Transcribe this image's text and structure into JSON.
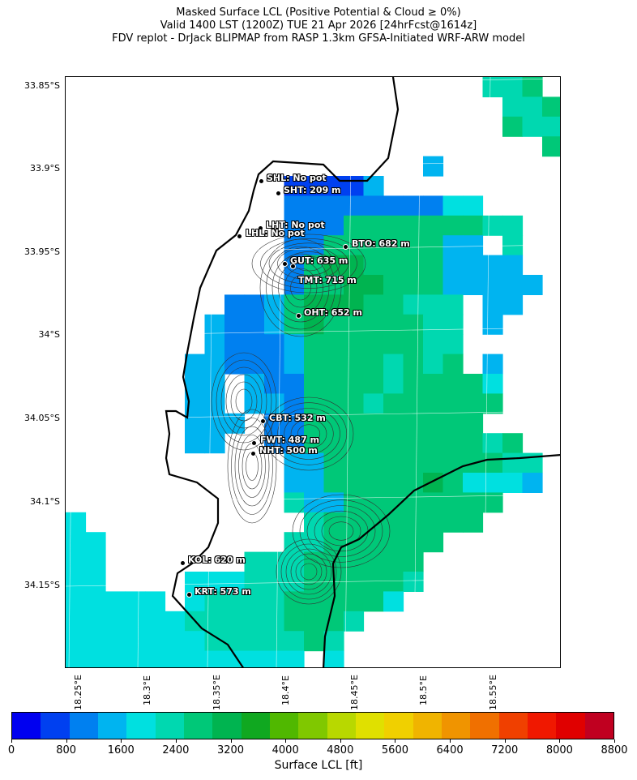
{
  "title": {
    "line1": "Masked Surface LCL (Positive Potential & Cloud ≥ 0%)",
    "line2": "Valid 1400 LST (1200Z) TUE 21 Apr 2026 [24hrFcst@1614z]",
    "line3": "FDV replot - DrJack BLIPMAP from RASP 1.3km GFSA-Initiated WRF-ARW model"
  },
  "map": {
    "lat_labels": [
      "33.85°S",
      "33.9°S",
      "33.95°S",
      "34°S",
      "34.05°S",
      "34.1°S",
      "34.15°S"
    ],
    "lon_labels": [
      "18.25°E",
      "18.3°E",
      "18.35°E",
      "18.4°E",
      "18.45°E",
      "18.5°E",
      "18.55°E"
    ],
    "stations": [
      {
        "id": "SHL",
        "label": "SHL: No pot"
      },
      {
        "id": "SHT",
        "label": "SHT: 209 m"
      },
      {
        "id": "LHT",
        "label": "LHT: No pot"
      },
      {
        "id": "LHL",
        "label": "LHL: No pot"
      },
      {
        "id": "BTO",
        "label": "BTO: 682 m"
      },
      {
        "id": "GUT",
        "label": "GUT: 635 m"
      },
      {
        "id": "TMT",
        "label": "TMT: 715 m"
      },
      {
        "id": "OHT",
        "label": "OHT: 652 m"
      },
      {
        "id": "CBT",
        "label": "CBT: 532 m"
      },
      {
        "id": "FWT",
        "label": "FWT: 487 m"
      },
      {
        "id": "NHT",
        "label": "NHT: 500 m"
      },
      {
        "id": "KOL",
        "label": "KOL: 620 m"
      },
      {
        "id": "KRT",
        "label": "KRT: 573 m"
      }
    ]
  },
  "colorbar": {
    "label": "Surface LCL [ft]",
    "tick_labels": [
      "0",
      "800",
      "1600",
      "2400",
      "3200",
      "4000",
      "4800",
      "5600",
      "6400",
      "7200",
      "8000",
      "8800"
    ],
    "colors": [
      "#0000f0",
      "#0040f0",
      "#0080f0",
      "#00b4f0",
      "#00e0e0",
      "#00d8b0",
      "#00c878",
      "#00b450",
      "#10a820",
      "#50b800",
      "#80c800",
      "#b8d800",
      "#e0e000",
      "#f0d000",
      "#f0b400",
      "#f09400",
      "#f07000",
      "#f04000",
      "#f01800",
      "#e00000",
      "#c00020"
    ]
  },
  "chart_data": {
    "type": "heatmap",
    "title": "Masked Surface LCL (Positive Potential & Cloud ≥ 0%)",
    "colorbar_label": "Surface LCL [ft]",
    "colorbar_range": [
      0,
      8800
    ],
    "colorbar_step": 400,
    "stations": [
      {
        "name": "SHL",
        "lat": -33.905,
        "lon": 18.382,
        "value": "No pot"
      },
      {
        "name": "SHT",
        "lat": -33.913,
        "lon": 18.394,
        "value": 209
      },
      {
        "name": "LHT",
        "lat": -33.935,
        "lon": 18.381,
        "value": "No pot"
      },
      {
        "name": "LHL",
        "lat": -33.939,
        "lon": 18.368,
        "value": "No pot"
      },
      {
        "name": "BTO",
        "lat": -33.946,
        "lon": 18.442,
        "value": 682
      },
      {
        "name": "GUT",
        "lat": -33.957,
        "lon": 18.399,
        "value": 635
      },
      {
        "name": "TMT",
        "lat": -33.959,
        "lon": 18.406,
        "value": 715
      },
      {
        "name": "OHT",
        "lat": -33.988,
        "lon": 18.409,
        "value": 652
      },
      {
        "name": "CBT",
        "lat": -34.052,
        "lon": 18.384,
        "value": 532
      },
      {
        "name": "FWT",
        "lat": -34.065,
        "lon": 18.377,
        "value": 487
      },
      {
        "name": "NHT",
        "lat": -34.071,
        "lon": 18.377,
        "value": 500
      },
      {
        "name": "KOL",
        "lat": -34.135,
        "lon": 18.28,
        "value": 620
      },
      {
        "name": "KRT",
        "lat": -34.154,
        "lon": 18.285,
        "value": 573
      }
    ]
  }
}
